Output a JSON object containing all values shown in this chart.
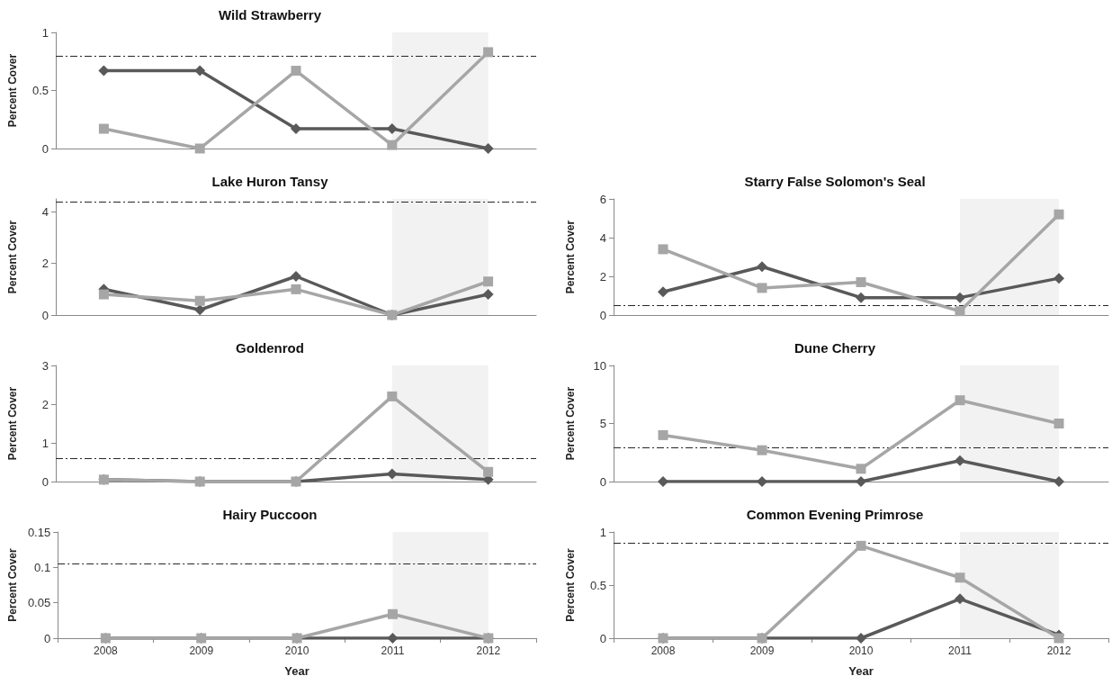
{
  "chart_data": [
    {
      "type": "line",
      "title": "Wild Strawberry",
      "ylabel": "Percent Cover",
      "categories": [
        "2008",
        "2009",
        "2010",
        "2011",
        "2012"
      ],
      "ylim": [
        0,
        1
      ],
      "yticks": [
        0,
        0.5,
        1
      ],
      "tick_labels": "y",
      "grid": false,
      "series": [
        {
          "color": "#595959",
          "marker": "diamond",
          "values": [
            0.67,
            0.67,
            0.17,
            0.17,
            0
          ]
        },
        {
          "color": "#a6a6a6",
          "marker": "square",
          "values": [
            0.17,
            0,
            0.67,
            0.03,
            0.83
          ]
        }
      ],
      "ref_lines": [
        {
          "axis": "y",
          "value": 0.8,
          "color": "#262626",
          "line_style": "dashdot"
        }
      ],
      "bands": [
        {
          "axis": "x",
          "from": "2011",
          "to": "2012",
          "color": "#f2f2f2"
        }
      ]
    },
    {
      "type": "line",
      "title": "Lake Huron Tansy",
      "ylabel": "Percent Cover",
      "categories": [
        "2008",
        "2009",
        "2010",
        "2011",
        "2012"
      ],
      "ylim": [
        0,
        4.5
      ],
      "yticks": [
        0,
        2,
        4
      ],
      "tick_labels": "y",
      "grid": false,
      "series": [
        {
          "color": "#595959",
          "marker": "diamond",
          "values": [
            1.0,
            0.2,
            1.5,
            0,
            0.8
          ]
        },
        {
          "color": "#a6a6a6",
          "marker": "square",
          "values": [
            0.8,
            0.55,
            1.0,
            0,
            1.3
          ]
        }
      ],
      "ref_lines": [
        {
          "axis": "y",
          "value": 4.4,
          "color": "#262626",
          "line_style": "dashdot"
        }
      ],
      "bands": [
        {
          "axis": "x",
          "from": "2011",
          "to": "2012",
          "color": "#f2f2f2"
        }
      ]
    },
    {
      "type": "line",
      "title": "Starry False Solomon's Seal",
      "ylabel": "Percent Cover",
      "categories": [
        "2008",
        "2009",
        "2010",
        "2011",
        "2012"
      ],
      "ylim": [
        0,
        6
      ],
      "yticks": [
        0,
        2,
        4,
        6
      ],
      "tick_labels": "y",
      "grid": false,
      "series": [
        {
          "color": "#595959",
          "marker": "diamond",
          "values": [
            1.2,
            2.5,
            0.9,
            0.9,
            1.9
          ]
        },
        {
          "color": "#a6a6a6",
          "marker": "square",
          "values": [
            3.4,
            1.4,
            1.7,
            0.2,
            5.2
          ]
        }
      ],
      "ref_lines": [
        {
          "axis": "y",
          "value": 0.5,
          "color": "#262626",
          "line_style": "dashdot"
        }
      ],
      "bands": [
        {
          "axis": "x",
          "from": "2011",
          "to": "2012",
          "color": "#f2f2f2"
        }
      ]
    },
    {
      "type": "line",
      "title": "Goldenrod",
      "ylabel": "Percent Cover",
      "categories": [
        "2008",
        "2009",
        "2010",
        "2011",
        "2012"
      ],
      "ylim": [
        0,
        3
      ],
      "yticks": [
        0,
        1,
        2,
        3
      ],
      "tick_labels": "y",
      "grid": false,
      "series": [
        {
          "color": "#595959",
          "marker": "diamond",
          "values": [
            0.05,
            0,
            0,
            0.2,
            0.05
          ]
        },
        {
          "color": "#a6a6a6",
          "marker": "square",
          "values": [
            0.05,
            0,
            0,
            2.2,
            0.25
          ]
        }
      ],
      "ref_lines": [
        {
          "axis": "y",
          "value": 0.6,
          "color": "#262626",
          "line_style": "dashdot"
        }
      ],
      "bands": [
        {
          "axis": "x",
          "from": "2011",
          "to": "2012",
          "color": "#f2f2f2"
        }
      ]
    },
    {
      "type": "line",
      "title": "Dune Cherry",
      "ylabel": "Percent Cover",
      "categories": [
        "2008",
        "2009",
        "2010",
        "2011",
        "2012"
      ],
      "ylim": [
        0,
        10
      ],
      "yticks": [
        0,
        5,
        10
      ],
      "tick_labels": "y",
      "grid": false,
      "series": [
        {
          "color": "#595959",
          "marker": "diamond",
          "values": [
            0,
            0,
            0,
            1.8,
            0
          ]
        },
        {
          "color": "#a6a6a6",
          "marker": "square",
          "values": [
            4.0,
            2.7,
            1.1,
            7.0,
            5.0
          ]
        }
      ],
      "ref_lines": [
        {
          "axis": "y",
          "value": 2.9,
          "color": "#262626",
          "line_style": "dashdot"
        }
      ],
      "bands": [
        {
          "axis": "x",
          "from": "2011",
          "to": "2012",
          "color": "#f2f2f2"
        }
      ]
    },
    {
      "type": "line",
      "title": "Hairy Puccoon",
      "xlabel": "Year",
      "ylabel": "Percent Cover",
      "categories": [
        "2008",
        "2009",
        "2010",
        "2011",
        "2012"
      ],
      "ylim": [
        0,
        0.15
      ],
      "yticks": [
        0,
        0.05,
        0.1,
        0.15
      ],
      "grid": false,
      "series": [
        {
          "color": "#595959",
          "marker": "diamond",
          "values": [
            0,
            0,
            0,
            0,
            0
          ]
        },
        {
          "color": "#a6a6a6",
          "marker": "square",
          "values": [
            0,
            0,
            0,
            0.034,
            0
          ]
        }
      ],
      "ref_lines": [
        {
          "axis": "y",
          "value": 0.105,
          "color": "#262626",
          "line_style": "dashdot"
        }
      ],
      "bands": [
        {
          "axis": "x",
          "from": "2011",
          "to": "2012",
          "color": "#f2f2f2"
        }
      ]
    },
    {
      "type": "line",
      "title": "Common Evening Primrose",
      "xlabel": "Year",
      "ylabel": "Percent Cover",
      "categories": [
        "2008",
        "2009",
        "2010",
        "2011",
        "2012"
      ],
      "ylim": [
        0,
        1
      ],
      "yticks": [
        0,
        0.5,
        1
      ],
      "grid": false,
      "series": [
        {
          "color": "#595959",
          "marker": "diamond",
          "values": [
            0,
            0,
            0,
            0.37,
            0.03
          ]
        },
        {
          "color": "#a6a6a6",
          "marker": "square",
          "values": [
            0,
            0,
            0.87,
            0.57,
            0
          ]
        }
      ],
      "ref_lines": [
        {
          "axis": "y",
          "value": 0.9,
          "color": "#262626",
          "line_style": "dashdot"
        }
      ],
      "bands": [
        {
          "axis": "x",
          "from": "2011",
          "to": "2012",
          "color": "#f2f2f2"
        }
      ]
    }
  ]
}
